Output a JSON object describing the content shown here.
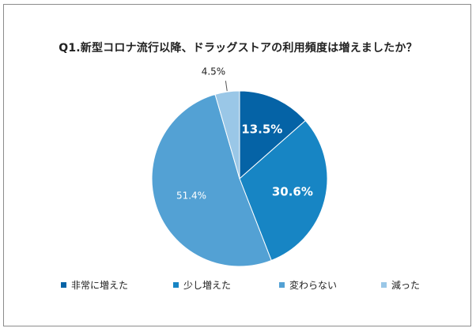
{
  "chart_data": {
    "type": "pie",
    "title": "Q1.新型コロナ流行以降、ドラッグストアの利用頻度は増えましたか？",
    "categories": [
      "非常に増えた",
      "少し増えた",
      "変わらない",
      "減った"
    ],
    "values": [
      13.5,
      30.6,
      51.4,
      4.5
    ],
    "data_labels": [
      "13.5%",
      "30.6%",
      "51.4%",
      "4.5%"
    ],
    "colors": [
      "#0563a6",
      "#1785c4",
      "#53a1d4",
      "#9ac7e7"
    ],
    "legend_position": "bottom",
    "start_angle_deg": 0,
    "direction": "clockwise"
  }
}
